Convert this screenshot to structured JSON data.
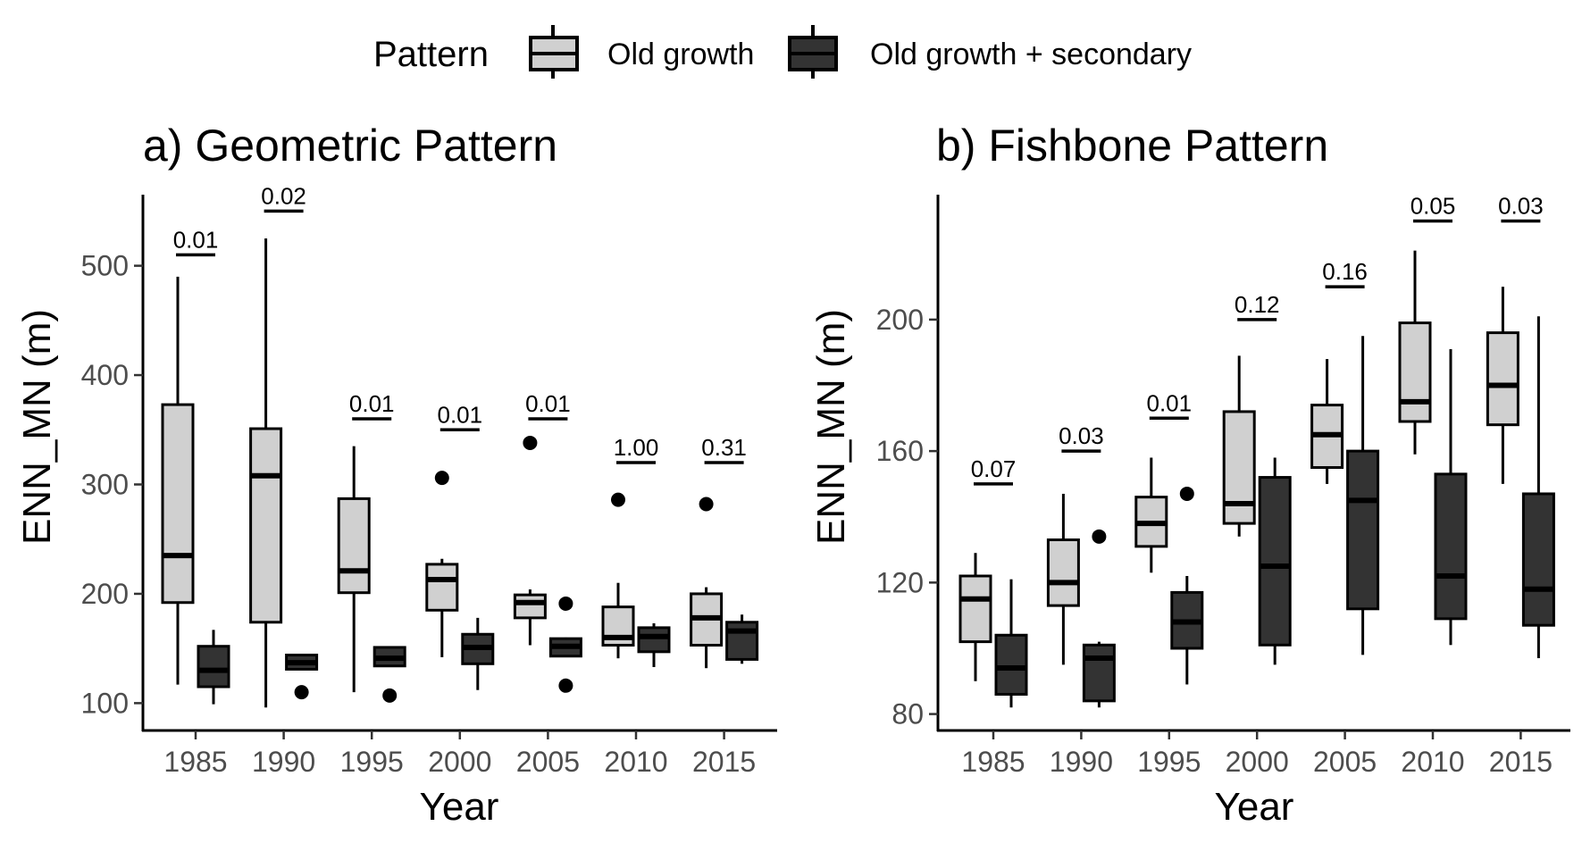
{
  "legend": {
    "title": "Pattern",
    "entries": [
      {
        "label": "Old growth",
        "color": "#d0d0d0"
      },
      {
        "label": "Old growth + secondary",
        "color": "#333333"
      }
    ]
  },
  "chart_data": [
    {
      "type": "boxplot",
      "title": "a) Geometric Pattern",
      "xlabel": "Year",
      "ylabel": "ENN_MN (m)",
      "categories": [
        "1985",
        "1990",
        "1995",
        "2000",
        "2005",
        "2010",
        "2015"
      ],
      "yticks": [
        100,
        200,
        300,
        400,
        500
      ],
      "ylim": [
        75,
        565
      ],
      "series": [
        {
          "name": "Old growth",
          "color": "#d0d0d0",
          "boxes": [
            {
              "low": 117,
              "q1": 192,
              "median": 235,
              "q3": 373,
              "high": 490,
              "outliers": []
            },
            {
              "low": 96,
              "q1": 174,
              "median": 308,
              "q3": 351,
              "high": 525,
              "outliers": []
            },
            {
              "low": 110,
              "q1": 201,
              "median": 221,
              "q3": 287,
              "high": 335,
              "outliers": []
            },
            {
              "low": 142,
              "q1": 185,
              "median": 213,
              "q3": 227,
              "high": 232,
              "outliers": [
                306
              ]
            },
            {
              "low": 153,
              "q1": 178,
              "median": 192,
              "q3": 199,
              "high": 204,
              "outliers": [
                338
              ]
            },
            {
              "low": 141,
              "q1": 153,
              "median": 160,
              "q3": 188,
              "high": 210,
              "outliers": [
                286
              ]
            },
            {
              "low": 132,
              "q1": 153,
              "median": 178,
              "q3": 200,
              "high": 206,
              "outliers": [
                282
              ]
            }
          ]
        },
        {
          "name": "Old growth + secondary",
          "color": "#333333",
          "boxes": [
            {
              "low": 99,
              "q1": 115,
              "median": 130,
              "q3": 152,
              "high": 167,
              "outliers": []
            },
            {
              "low": 131,
              "q1": 131,
              "median": 137,
              "q3": 144,
              "high": 145,
              "outliers": [
                110
              ]
            },
            {
              "low": 134,
              "q1": 134,
              "median": 141,
              "q3": 151,
              "high": 152,
              "outliers": [
                107
              ]
            },
            {
              "low": 112,
              "q1": 136,
              "median": 151,
              "q3": 163,
              "high": 178,
              "outliers": []
            },
            {
              "low": 143,
              "q1": 143,
              "median": 152,
              "q3": 159,
              "high": 160,
              "outliers": [
                191,
                116
              ]
            },
            {
              "low": 133,
              "q1": 147,
              "median": 161,
              "q3": 169,
              "high": 173,
              "outliers": []
            },
            {
              "low": 136,
              "q1": 140,
              "median": 166,
              "q3": 174,
              "high": 181,
              "outliers": []
            }
          ]
        }
      ],
      "pvalues": [
        {
          "label": "0.01",
          "y": 510
        },
        {
          "label": "0.02",
          "y": 550
        },
        {
          "label": "0.01",
          "y": 360
        },
        {
          "label": "0.01",
          "y": 350
        },
        {
          "label": "0.01",
          "y": 360
        },
        {
          "label": "1.00",
          "y": 320
        },
        {
          "label": "0.31",
          "y": 320
        }
      ]
    },
    {
      "type": "boxplot",
      "title": "b) Fishbone Pattern",
      "xlabel": "Year",
      "ylabel": "ENN_MN (m)",
      "categories": [
        "1985",
        "1990",
        "1995",
        "2000",
        "2005",
        "2010",
        "2015"
      ],
      "yticks": [
        80,
        120,
        160,
        200
      ],
      "ylim": [
        75,
        238
      ],
      "series": [
        {
          "name": "Old growth",
          "color": "#d0d0d0",
          "boxes": [
            {
              "low": 90,
              "q1": 102,
              "median": 115,
              "q3": 122,
              "high": 129,
              "outliers": []
            },
            {
              "low": 95,
              "q1": 113,
              "median": 120,
              "q3": 133,
              "high": 147,
              "outliers": []
            },
            {
              "low": 123,
              "q1": 131,
              "median": 138,
              "q3": 146,
              "high": 158,
              "outliers": []
            },
            {
              "low": 134,
              "q1": 138,
              "median": 144,
              "q3": 172,
              "high": 189,
              "outliers": []
            },
            {
              "low": 150,
              "q1": 155,
              "median": 165,
              "q3": 174,
              "high": 188,
              "outliers": []
            },
            {
              "low": 159,
              "q1": 169,
              "median": 175,
              "q3": 199,
              "high": 221,
              "outliers": []
            },
            {
              "low": 150,
              "q1": 168,
              "median": 180,
              "q3": 196,
              "high": 210,
              "outliers": []
            }
          ]
        },
        {
          "name": "Old growth + secondary",
          "color": "#333333",
          "boxes": [
            {
              "low": 82,
              "q1": 86,
              "median": 94,
              "q3": 104,
              "high": 121,
              "outliers": []
            },
            {
              "low": 82,
              "q1": 84,
              "median": 97,
              "q3": 101,
              "high": 102,
              "outliers": [
                134
              ]
            },
            {
              "low": 89,
              "q1": 100,
              "median": 108,
              "q3": 117,
              "high": 122,
              "outliers": [
                147
              ]
            },
            {
              "low": 95,
              "q1": 101,
              "median": 125,
              "q3": 152,
              "high": 158,
              "outliers": []
            },
            {
              "low": 98,
              "q1": 112,
              "median": 145,
              "q3": 160,
              "high": 195,
              "outliers": []
            },
            {
              "low": 101,
              "q1": 109,
              "median": 122,
              "q3": 153,
              "high": 191,
              "outliers": []
            },
            {
              "low": 97,
              "q1": 107,
              "median": 118,
              "q3": 147,
              "high": 201,
              "outliers": []
            }
          ]
        }
      ],
      "pvalues": [
        {
          "label": "0.07",
          "y": 150
        },
        {
          "label": "0.03",
          "y": 160
        },
        {
          "label": "0.01",
          "y": 170
        },
        {
          "label": "0.12",
          "y": 200
        },
        {
          "label": "0.16",
          "y": 210
        },
        {
          "label": "0.05",
          "y": 230
        },
        {
          "label": "0.03",
          "y": 230
        }
      ]
    }
  ]
}
